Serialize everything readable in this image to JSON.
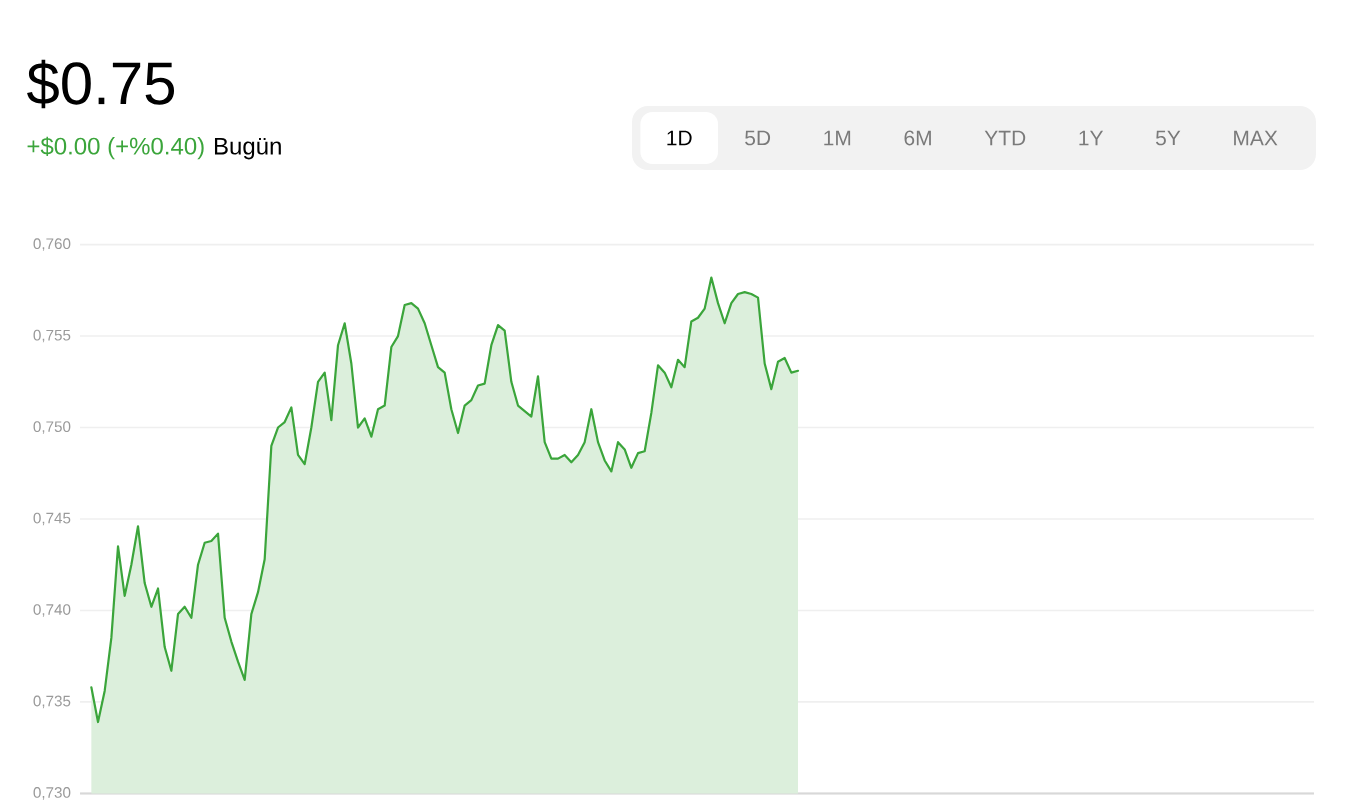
{
  "chart_data": {
    "type": "area",
    "annotations": [
      "$0.75",
      "+$0.00 (+%0.40)",
      "Bugün",
      "1D",
      "5D",
      "1M",
      "6M",
      "YTD",
      "1Y",
      "5Y",
      "MAX"
    ],
    "categories": [
      null,
      null,
      null,
      null,
      null,
      null,
      null,
      null,
      null,
      null,
      null,
      null,
      null,
      null,
      null,
      null,
      null,
      null,
      null,
      null,
      null,
      null,
      null,
      null,
      null,
      null,
      null,
      null,
      null,
      null,
      null,
      null,
      null,
      null,
      null,
      null,
      null,
      null,
      null,
      null,
      null,
      null,
      null,
      null,
      null,
      null,
      null,
      null,
      null,
      null,
      null,
      null,
      null,
      null,
      null,
      null,
      null,
      null,
      null,
      null,
      null,
      null,
      null,
      null,
      null,
      null,
      null,
      null,
      null,
      null,
      null,
      null,
      null,
      null,
      null,
      null,
      null,
      null,
      null,
      null,
      null,
      null,
      null,
      null,
      null,
      null,
      null,
      null,
      null,
      null,
      null,
      null,
      null,
      null,
      null,
      null,
      null,
      null,
      null,
      null,
      null,
      null,
      null,
      null,
      null,
      null,
      null,
      null,
      null,
      null,
      null,
      null,
      null,
      null,
      null,
      null,
      null,
      null,
      null,
      null,
      null,
      null,
      null,
      null,
      null,
      null,
      null,
      null,
      null,
      null,
      null,
      null,
      null,
      null,
      null,
      null,
      null,
      null,
      null,
      null,
      null,
      null,
      null,
      null,
      null,
      null,
      null,
      null,
      null,
      null,
      null,
      null,
      null,
      null,
      null,
      null,
      null,
      null,
      null,
      null,
      null,
      null,
      null,
      null,
      null,
      null,
      null,
      null,
      null,
      null,
      null,
      null,
      null,
      null,
      null,
      null,
      null,
      null,
      null,
      null,
      null,
      null,
      null,
      null
    ],
    "series": [
      {
        "color": "#3ba53b",
        "values": [
          0.7358,
          0.7339,
          0.7356,
          0.7385,
          0.7435,
          0.7408,
          0.7425,
          0.7446,
          0.7415,
          0.7402,
          0.7412,
          0.738,
          0.7367,
          0.7398,
          0.7402,
          0.7396,
          0.7425,
          0.7437,
          0.7438,
          0.7442,
          0.7396,
          0.7383,
          0.7372,
          0.7362,
          0.7398,
          0.741,
          0.7428,
          0.749,
          0.75,
          0.7503,
          0.7511,
          0.7485,
          0.748,
          0.75,
          0.7525,
          0.753,
          0.7504,
          0.7545,
          0.7557,
          0.7535,
          0.75,
          0.7505,
          0.7495,
          0.751,
          0.7512,
          0.7544,
          0.755,
          0.7567,
          0.7568,
          0.7565,
          0.7557,
          0.7545,
          0.7533,
          0.753,
          0.751,
          0.7497,
          0.7512,
          0.7515,
          0.7523,
          0.7524,
          0.7545,
          0.7556,
          0.7553,
          0.7525,
          0.7512,
          0.7509,
          0.7506,
          0.7528,
          0.7492,
          0.7483,
          0.7483,
          0.7485,
          0.7481,
          0.7485,
          0.7492,
          0.751,
          0.7492,
          0.7482,
          0.7476,
          0.7492,
          0.7488,
          0.7478,
          0.7486,
          0.7487,
          0.7508,
          0.7534,
          0.753,
          0.7522,
          0.7537,
          0.7533,
          0.7558,
          0.756,
          0.7565,
          0.7582,
          0.7568,
          0.7557,
          0.7568,
          0.7573,
          0.7574,
          0.7573,
          0.7571,
          0.7535,
          0.7521,
          0.7536,
          0.7538,
          0.753,
          0.7531,
          null,
          null,
          null,
          null,
          null,
          null,
          null,
          null,
          null,
          null,
          null,
          null,
          null,
          null,
          null,
          null,
          null,
          null,
          null,
          null,
          null,
          null,
          null,
          null,
          null,
          null,
          null,
          null,
          null,
          null,
          null,
          null,
          null,
          null,
          null,
          null,
          null,
          null,
          null,
          null,
          null,
          null,
          null,
          null,
          null,
          null,
          null,
          null,
          null,
          null,
          null,
          null,
          null,
          null,
          null,
          null,
          null,
          null,
          null,
          null,
          null,
          null,
          null,
          null,
          null,
          null,
          null,
          null,
          null,
          null,
          null,
          null,
          null,
          null,
          null,
          null,
          null
        ]
      }
    ],
    "ylim": [
      0.73,
      0.76
    ],
    "yticks": [
      {
        "value": 0.73,
        "label": "0,730"
      },
      {
        "value": 0.735,
        "label": "0,735"
      },
      {
        "value": 0.74,
        "label": "0,740"
      },
      {
        "value": 0.745,
        "label": "0,745"
      },
      {
        "value": 0.75,
        "label": "0,750"
      },
      {
        "value": 0.755,
        "label": "0,755"
      },
      {
        "value": 0.76,
        "label": "0,760"
      }
    ],
    "grid": "y",
    "tick_labels": "y"
  }
}
